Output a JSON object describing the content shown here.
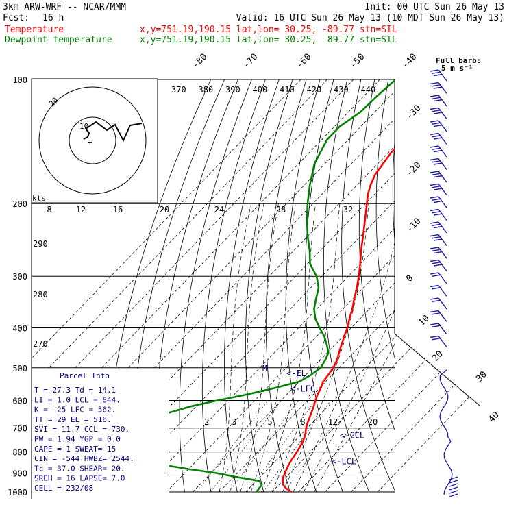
{
  "header": {
    "model": "3km ARW-WRF -- NCAR/MMM",
    "init": "Init: 00 UTC Sun 26 May 13",
    "fcst_label": "Fcst:",
    "fcst_value": "16 h",
    "valid": "Valid: 16 UTC Sun 26 May 13 (10 MDT Sun 26 May 13)"
  },
  "legend": [
    {
      "name": "Temperature",
      "color": "#ff0000",
      "info": "x,y=751.19,190.15   lat,lon= 30.25, -89.77  stn=SIL"
    },
    {
      "name": "Dewpoint temperature",
      "color": "#008000",
      "info": "x,y=751.19,190.15   lat,lon= 30.25, -89.77  stn=SIL"
    }
  ],
  "full_barb": {
    "line1": "Full barb:",
    "line2": "5 m s⁻¹"
  },
  "hodograph": {
    "units": "kts",
    "ring_labels": [
      "10",
      "20"
    ]
  },
  "parcel_info": {
    "title": "Parcel Info",
    "rows": [
      "T   =   27.3  Td =  14.1",
      "LI  =    1.0  LCL =  844.",
      "K   =    -25  LFC =  562.",
      "TT  =     29  EL  =  516.",
      "SVI =   11.7  CCL =  730.",
      "PW  =   1.94  YGP =   0.0",
      "CAPE =     1  SWEAT=   15",
      "CIN =   -544  HWBZ= 2544.",
      "Tc  =   37.0  SHEAR=  20.",
      "SREH =    16  LAPSE=  7.0",
      "CELL = 232/08"
    ]
  },
  "chart_data": {
    "type": "line",
    "diagram": "skew-T log-p",
    "y_axis": {
      "label": "",
      "scale": "log",
      "range": [
        1000,
        100
      ],
      "ticks": [
        100,
        200,
        300,
        400,
        500,
        600,
        700,
        800,
        900,
        1000
      ]
    },
    "isotherm_labels": [
      -80,
      -70,
      -60,
      -50,
      -40,
      -30,
      -20,
      -10,
      0,
      10,
      20,
      30,
      40
    ],
    "theta_labels": [
      370,
      380,
      390,
      400,
      410,
      420,
      430,
      440
    ],
    "theta_side_labels": [
      290,
      280,
      270
    ],
    "mixing_ratio_labels": [
      "2",
      "3",
      "5",
      "8",
      "12",
      "20"
    ],
    "upper_mixing_labels": [
      "8",
      "12",
      "16",
      "20",
      "24",
      "28",
      "32"
    ],
    "levels": [
      {
        "name": "EL",
        "label": "<-EL",
        "p": 516
      },
      {
        "name": "LFC",
        "label": "<-LFC",
        "p": 562
      },
      {
        "name": "CCL",
        "label": "<-CCL",
        "p": 730
      },
      {
        "name": "LCL",
        "label": "<-LCL",
        "p": 844
      }
    ],
    "series": [
      {
        "name": "Temperature",
        "color": "#ff0000",
        "points": [
          [
            1000,
            27.3
          ],
          [
            980,
            24
          ],
          [
            960,
            21.5
          ],
          [
            940,
            20
          ],
          [
            920,
            18.8
          ],
          [
            900,
            18
          ],
          [
            880,
            17.2
          ],
          [
            860,
            16.4
          ],
          [
            840,
            15.8
          ],
          [
            820,
            15.3
          ],
          [
            800,
            14.8
          ],
          [
            780,
            14.2
          ],
          [
            760,
            13.5
          ],
          [
            740,
            12.5
          ],
          [
            720,
            11.2
          ],
          [
            700,
            9.5
          ],
          [
            680,
            8.2
          ],
          [
            660,
            7
          ],
          [
            640,
            5.8
          ],
          [
            620,
            4.5
          ],
          [
            600,
            3
          ],
          [
            580,
            1.6
          ],
          [
            560,
            0.5
          ],
          [
            540,
            -1
          ],
          [
            520,
            -1.5
          ],
          [
            500,
            -2.2
          ],
          [
            480,
            -3.5
          ],
          [
            460,
            -5.5
          ],
          [
            440,
            -7.5
          ],
          [
            420,
            -9.5
          ],
          [
            400,
            -11.5
          ],
          [
            380,
            -14
          ],
          [
            360,
            -16.5
          ],
          [
            340,
            -19.5
          ],
          [
            320,
            -22.5
          ],
          [
            300,
            -26
          ],
          [
            280,
            -30
          ],
          [
            260,
            -34.5
          ],
          [
            240,
            -39
          ],
          [
            220,
            -44
          ],
          [
            200,
            -49.5
          ],
          [
            190,
            -52.5
          ],
          [
            180,
            -55
          ],
          [
            170,
            -57
          ],
          [
            160,
            -58
          ],
          [
            150,
            -59
          ],
          [
            140,
            -59
          ],
          [
            130,
            -58.5
          ],
          [
            120,
            -58
          ],
          [
            110,
            -58.5
          ],
          [
            100,
            -59
          ]
        ]
      },
      {
        "name": "Dewpoint temperature",
        "color": "#008000",
        "points": [
          [
            1000,
            14.1
          ],
          [
            980,
            13.8
          ],
          [
            960,
            13.5
          ],
          [
            940,
            11
          ],
          [
            920,
            1
          ],
          [
            900,
            -8
          ],
          [
            880,
            -20
          ],
          [
            860,
            -31
          ],
          [
            840,
            -40
          ],
          [
            820,
            -48
          ],
          [
            800,
            -56
          ],
          [
            780,
            -63
          ],
          [
            760,
            -70
          ],
          [
            740,
            -75
          ],
          [
            720,
            -68
          ],
          [
            700,
            -62
          ],
          [
            680,
            -57
          ],
          [
            650,
            -50
          ],
          [
            620,
            -42
          ],
          [
            600,
            -34
          ],
          [
            580,
            -25
          ],
          [
            560,
            -17
          ],
          [
            540,
            -10
          ],
          [
            520,
            -8
          ],
          [
            500,
            -7
          ],
          [
            480,
            -8
          ],
          [
            460,
            -9.5
          ],
          [
            440,
            -13
          ],
          [
            420,
            -17
          ],
          [
            400,
            -22
          ],
          [
            380,
            -27
          ],
          [
            360,
            -31
          ],
          [
            340,
            -34
          ],
          [
            320,
            -37
          ],
          [
            300,
            -42
          ],
          [
            280,
            -49
          ],
          [
            260,
            -54
          ],
          [
            240,
            -60
          ],
          [
            220,
            -66
          ],
          [
            200,
            -72
          ],
          [
            180,
            -78
          ],
          [
            160,
            -84
          ],
          [
            140,
            -88
          ],
          [
            130,
            -88
          ],
          [
            120,
            -85.5
          ],
          [
            110,
            -85
          ],
          [
            100,
            -84
          ]
        ]
      }
    ]
  }
}
